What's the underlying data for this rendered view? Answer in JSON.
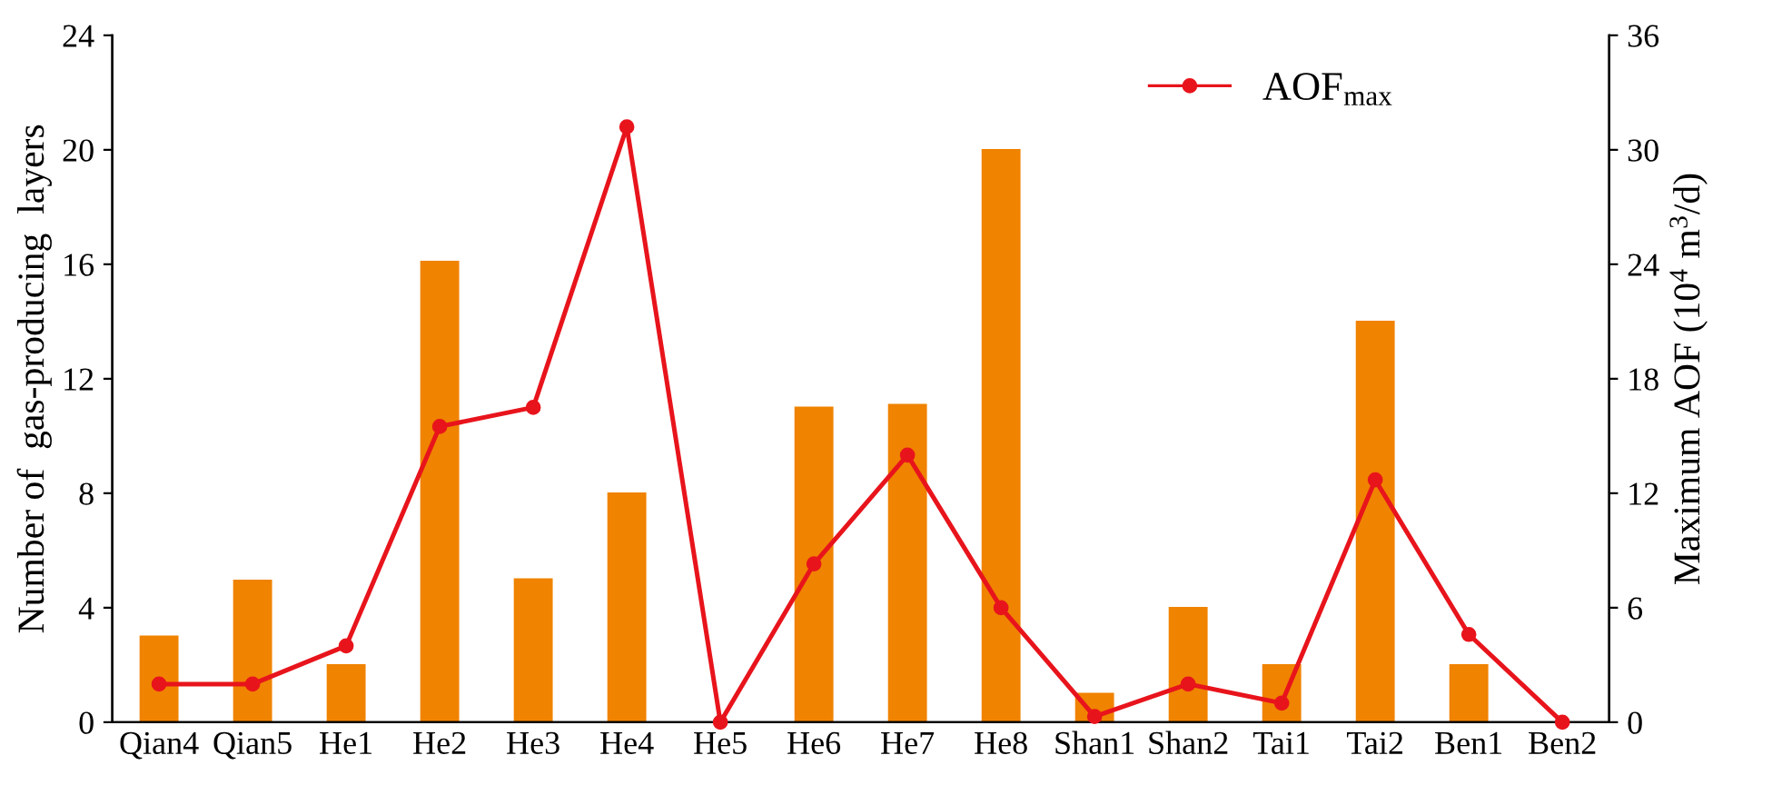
{
  "chart_data": {
    "type": "bar",
    "ylabel": "Number of  gas-producing  layers",
    "y2label": "Maximum AOF (10$^{4}$ m$^{3}$/d)",
    "categories": [
      "Qian4",
      "Qian5",
      "He1",
      "He2",
      "He3",
      "He4",
      "He5",
      "He6",
      "He7",
      "He8",
      "Shan1",
      "Shan2",
      "Tai1",
      "Tai2",
      "Ben1",
      "Ben2"
    ],
    "series": [
      {
        "color": "#f08300",
        "values": [
          3,
          4.95,
          2,
          16.1,
          5,
          8,
          0,
          11,
          11.1,
          20,
          1,
          4,
          2,
          14,
          2,
          0
        ]
      },
      {
        "type": "line",
        "axis": "y2",
        "name": "AOF$_{max}$",
        "color": "#e8141c",
        "marker": "circle",
        "line_style": "solid",
        "values": [
          2.0,
          2.0,
          4.0,
          15.5,
          16.5,
          31.2,
          0,
          8.3,
          14.0,
          6.0,
          0.3,
          2.0,
          1.0,
          12.7,
          4.6,
          0
        ]
      }
    ],
    "ylim": [
      0,
      24
    ],
    "yticks": [
      0,
      4,
      8,
      12,
      16,
      20,
      24
    ],
    "y2lim": [
      0,
      36
    ],
    "y2ticks": [
      0,
      6,
      12,
      18,
      24,
      30,
      36
    ],
    "grid": false,
    "legend": "top right"
  }
}
